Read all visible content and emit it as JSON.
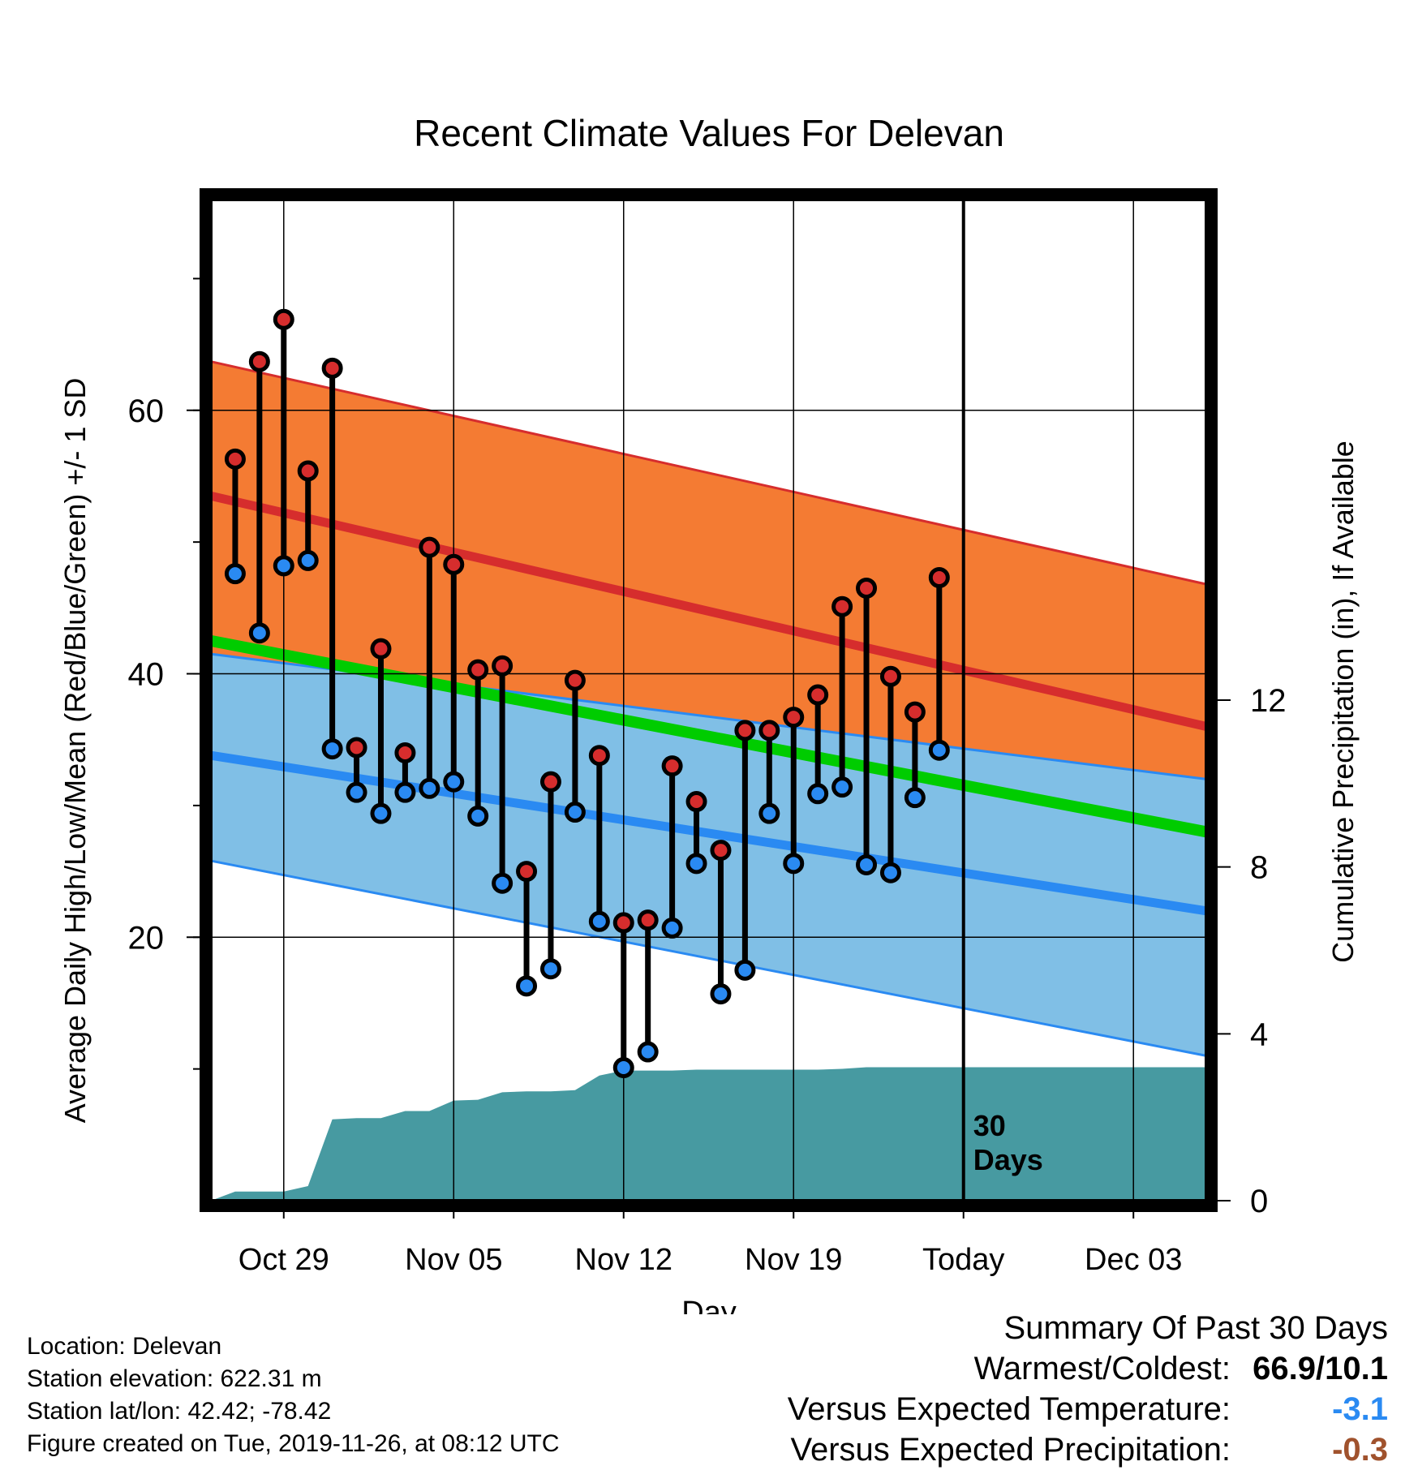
{
  "chart_data": {
    "type": "line",
    "title": "Recent Climate Values For Delevan",
    "xlabel": "Day",
    "ylabel_left": "Average Daily High/Low/Mean (Red/Blue/Green) +/- 1 SD",
    "ylabel_right": "Cumulative Precipitation (in), If Available",
    "x_ticks": [
      "Oct 29",
      "Nov 05",
      "Nov 12",
      "Nov 19",
      "Today",
      "Dec 03"
    ],
    "x_range": [
      "Oct 26",
      "Dec 06"
    ],
    "ylim_left": [
      0,
      76
    ],
    "ylim_right": [
      0,
      24
    ],
    "y_ticks_left": [
      20,
      40,
      60
    ],
    "y_ticks_right": [
      0,
      4,
      8,
      12
    ],
    "grid": true,
    "today_label": "30\nDays",
    "normals": {
      "dates": [
        "Oct 26",
        "Dec 06"
      ],
      "high_mean": [
        53.5,
        36.0
      ],
      "high_sd_upper": [
        63.7,
        46.8
      ],
      "high_sd_lower": [
        41.5,
        32.0
      ],
      "low_mean": [
        33.8,
        22.0
      ],
      "low_sd_upper": [
        41.5,
        32.0
      ],
      "low_sd_lower": [
        25.8,
        11.0
      ],
      "mean": [
        42.5,
        28.0
      ]
    },
    "series": [
      {
        "name": "High",
        "dates": [
          "Oct 27",
          "Oct 28",
          "Oct 29",
          "Oct 30",
          "Oct 31",
          "Nov 01",
          "Nov 02",
          "Nov 03",
          "Nov 04",
          "Nov 05",
          "Nov 06",
          "Nov 07",
          "Nov 08",
          "Nov 09",
          "Nov 10",
          "Nov 11",
          "Nov 12",
          "Nov 13",
          "Nov 14",
          "Nov 15",
          "Nov 16",
          "Nov 17",
          "Nov 18",
          "Nov 19",
          "Nov 20",
          "Nov 21",
          "Nov 22",
          "Nov 23",
          "Nov 24",
          "Nov 25"
        ],
        "values": [
          56.3,
          63.7,
          66.9,
          55.4,
          63.2,
          34.4,
          41.9,
          34.0,
          49.6,
          48.3,
          40.3,
          40.6,
          25.0,
          31.8,
          39.5,
          33.8,
          21.1,
          21.3,
          33.0,
          30.3,
          26.6,
          35.7,
          35.7,
          36.7,
          38.4,
          45.1,
          46.5,
          39.8,
          37.1,
          47.3
        ]
      },
      {
        "name": "Low",
        "dates": [
          "Oct 27",
          "Oct 28",
          "Oct 29",
          "Oct 30",
          "Oct 31",
          "Nov 01",
          "Nov 02",
          "Nov 03",
          "Nov 04",
          "Nov 05",
          "Nov 06",
          "Nov 07",
          "Nov 08",
          "Nov 09",
          "Nov 10",
          "Nov 11",
          "Nov 12",
          "Nov 13",
          "Nov 14",
          "Nov 15",
          "Nov 16",
          "Nov 17",
          "Nov 18",
          "Nov 19",
          "Nov 20",
          "Nov 21",
          "Nov 22",
          "Nov 23",
          "Nov 24",
          "Nov 25"
        ],
        "values": [
          47.6,
          43.1,
          48.2,
          48.6,
          34.3,
          31.0,
          29.4,
          31.0,
          31.3,
          31.8,
          29.2,
          24.1,
          16.3,
          17.6,
          29.5,
          21.2,
          10.1,
          11.3,
          20.7,
          25.6,
          15.7,
          17.5,
          29.4,
          25.6,
          30.9,
          31.4,
          25.5,
          24.9,
          30.6,
          34.2
        ]
      }
    ],
    "precip": {
      "dates": [
        "Oct 26",
        "Oct 27",
        "Oct 28",
        "Oct 29",
        "Oct 30",
        "Oct 31",
        "Nov 01",
        "Nov 02",
        "Nov 03",
        "Nov 04",
        "Nov 05",
        "Nov 06",
        "Nov 07",
        "Nov 08",
        "Nov 09",
        "Nov 10",
        "Nov 11",
        "Nov 12",
        "Nov 13",
        "Nov 14",
        "Nov 15",
        "Nov 16",
        "Nov 17",
        "Nov 18",
        "Nov 19",
        "Nov 20",
        "Nov 21",
        "Nov 22",
        "Nov 23",
        "Nov 24",
        "Nov 25",
        "Dec 06"
      ],
      "values": [
        0.0,
        0.22,
        0.22,
        0.22,
        0.35,
        1.95,
        1.98,
        1.98,
        2.15,
        2.15,
        2.4,
        2.42,
        2.6,
        2.62,
        2.62,
        2.65,
        3.0,
        3.12,
        3.12,
        3.12,
        3.14,
        3.14,
        3.14,
        3.14,
        3.14,
        3.14,
        3.16,
        3.2,
        3.2,
        3.2,
        3.2,
        3.2
      ]
    },
    "colors": {
      "high_band": "#f47b33",
      "high_line": "#d62d2d",
      "low_band": "#80bfe6",
      "low_line": "#2a8af2",
      "overlap_band": "#8c1a1a",
      "mean_line": "#00cc00",
      "precip": "#479aa1",
      "high_dot": "#d62d2d",
      "low_dot": "#2a8af2"
    }
  },
  "info": {
    "location": "Location: Delevan",
    "elevation": "Station elevation: 622.31 m",
    "latlon": "Station lat/lon: 42.42; -78.42",
    "created": "Figure created on Tue, 2019-11-26, at 08:12 UTC"
  },
  "summary": {
    "heading": "Summary Of Past 30 Days",
    "warm_cold_label": "Warmest/Coldest:",
    "warm_cold_value": "66.9/10.1",
    "temp_label": "Versus Expected Temperature:",
    "temp_value": "-3.1",
    "temp_color": "#2a8af2",
    "precip_label": "Versus Expected Precipitation:",
    "precip_value": "-0.3",
    "precip_color": "#a0522d"
  }
}
